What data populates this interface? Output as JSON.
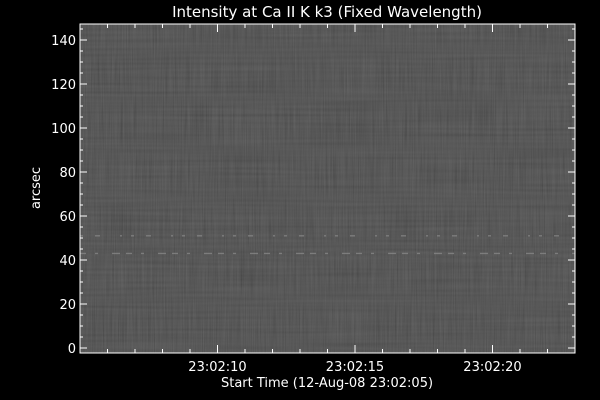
{
  "chart_data": {
    "type": "heatmap",
    "title": "Intensity at Ca II K k3 (Fixed Wavelength)",
    "xlabel": "Start Time (12-Aug-08 23:02:05)",
    "ylabel": "arcsec",
    "xlim": [
      0,
      18
    ],
    "ylim": [
      0,
      145
    ],
    "x_ticks": [
      {
        "value": 5,
        "label": "23:02:10"
      },
      {
        "value": 10,
        "label": "23:02:15"
      },
      {
        "value": 15,
        "label": "23:02:20"
      }
    ],
    "y_ticks": [
      0,
      20,
      40,
      60,
      80,
      100,
      120,
      140
    ],
    "colormap": "grayscale",
    "background_color": "#000000",
    "foreground_color": "#ffffff",
    "bright_bands_arcsec": [
      43,
      51
    ]
  }
}
